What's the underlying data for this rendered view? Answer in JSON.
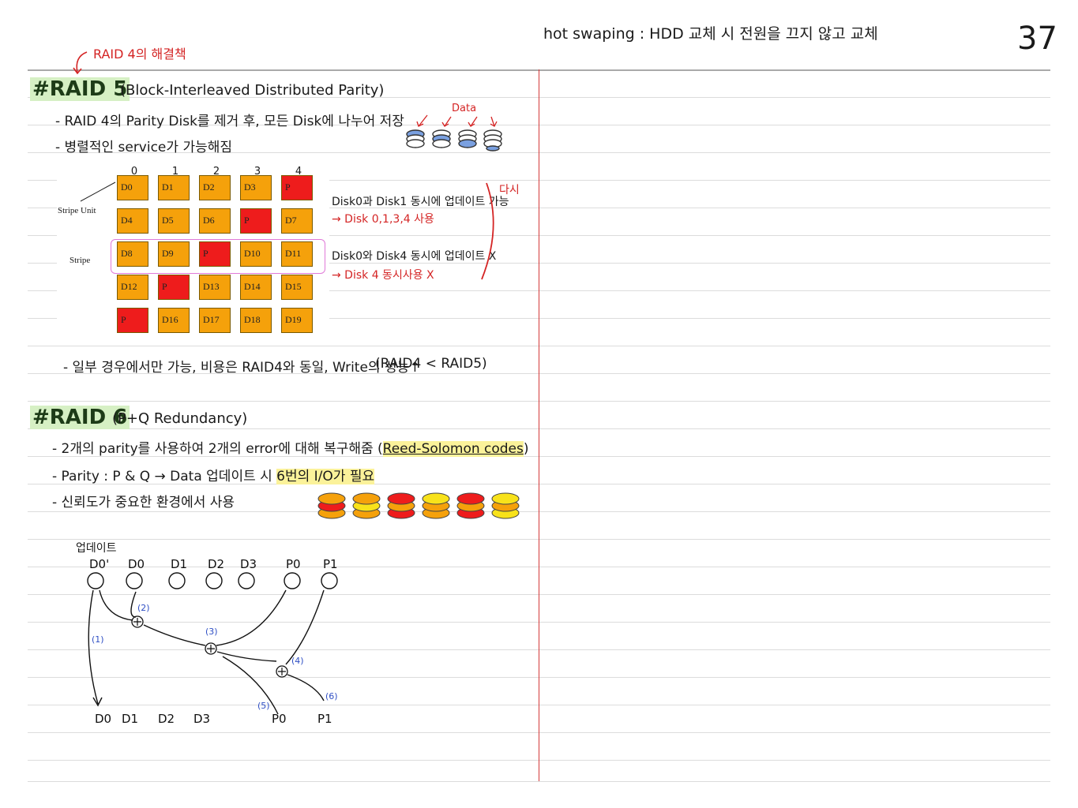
{
  "header": {
    "hot_swap": "hot swaping : HDD 교체 시 전원을 끄지 않고 교체",
    "page_number": "37"
  },
  "raid5": {
    "note": "RAID 4의 해결책",
    "title": "#RAID 5",
    "subtitle": "(Block-Interleaved Distributed Parity)",
    "bullet1": "- RAID 4의 Parity Disk를 제거 후, 모든 Disk에 나누어 저장",
    "bullet2": "- 병렬적인 service가 가능해짐",
    "data_label": "Data",
    "col_numbers": [
      "0",
      "1",
      "2",
      "3",
      "4"
    ],
    "stripe_unit_label": "Stripe Unit",
    "stripe_label": "Stripe",
    "rows": [
      [
        "D0",
        "D1",
        "D2",
        "D3",
        "P"
      ],
      [
        "D4",
        "D5",
        "D6",
        "P",
        "D7"
      ],
      [
        "D8",
        "D9",
        "P",
        "D10",
        "D11"
      ],
      [
        "D12",
        "P",
        "D13",
        "D14",
        "D15"
      ],
      [
        "P",
        "D16",
        "D17",
        "D18",
        "D19"
      ]
    ],
    "side_note1": "Disk0과 Disk1 동시에 업데이트 가능",
    "side_note1_red": "→ Disk 0,1,3,4 사용",
    "side_note2": "Disk0와 Disk4 동시에 업데이트 X",
    "side_note2_red": "→ Disk 4 동시사용 X",
    "again": "다시",
    "bullet3": "- 일부 경우에서만 가능, 비용은 RAID4와 동일, Write의 성능↑",
    "compare": "(RAID4 < RAID5)"
  },
  "raid6": {
    "title": "#RAID 6",
    "subtitle": "(P+Q Redundancy)",
    "bullet1_a": "- 2개의 parity를 사용하여 2개의 error에 대해 복구해줌 (",
    "bullet1_hl": "Reed-Solomon codes",
    "bullet1_b": ")",
    "bullet2_a": "- Parity : P & Q → Data 업데이트 시",
    "bullet2_hl": "6번의 I/O가 필요",
    "bullet3": "- 신뢰도가 중요한 환경에서 사용",
    "update_label": "업데이트",
    "top_nodes": [
      "D0'",
      "D0",
      "D1",
      "D2",
      "D3",
      "P0",
      "P1"
    ],
    "bottom_nodes": [
      "D0",
      "D1",
      "D2",
      "D3",
      "P0",
      "P1"
    ],
    "steps": [
      "(1)",
      "(2)",
      "(3)",
      "(4)",
      "(5)",
      "(6)"
    ],
    "xor": "⊕"
  }
}
